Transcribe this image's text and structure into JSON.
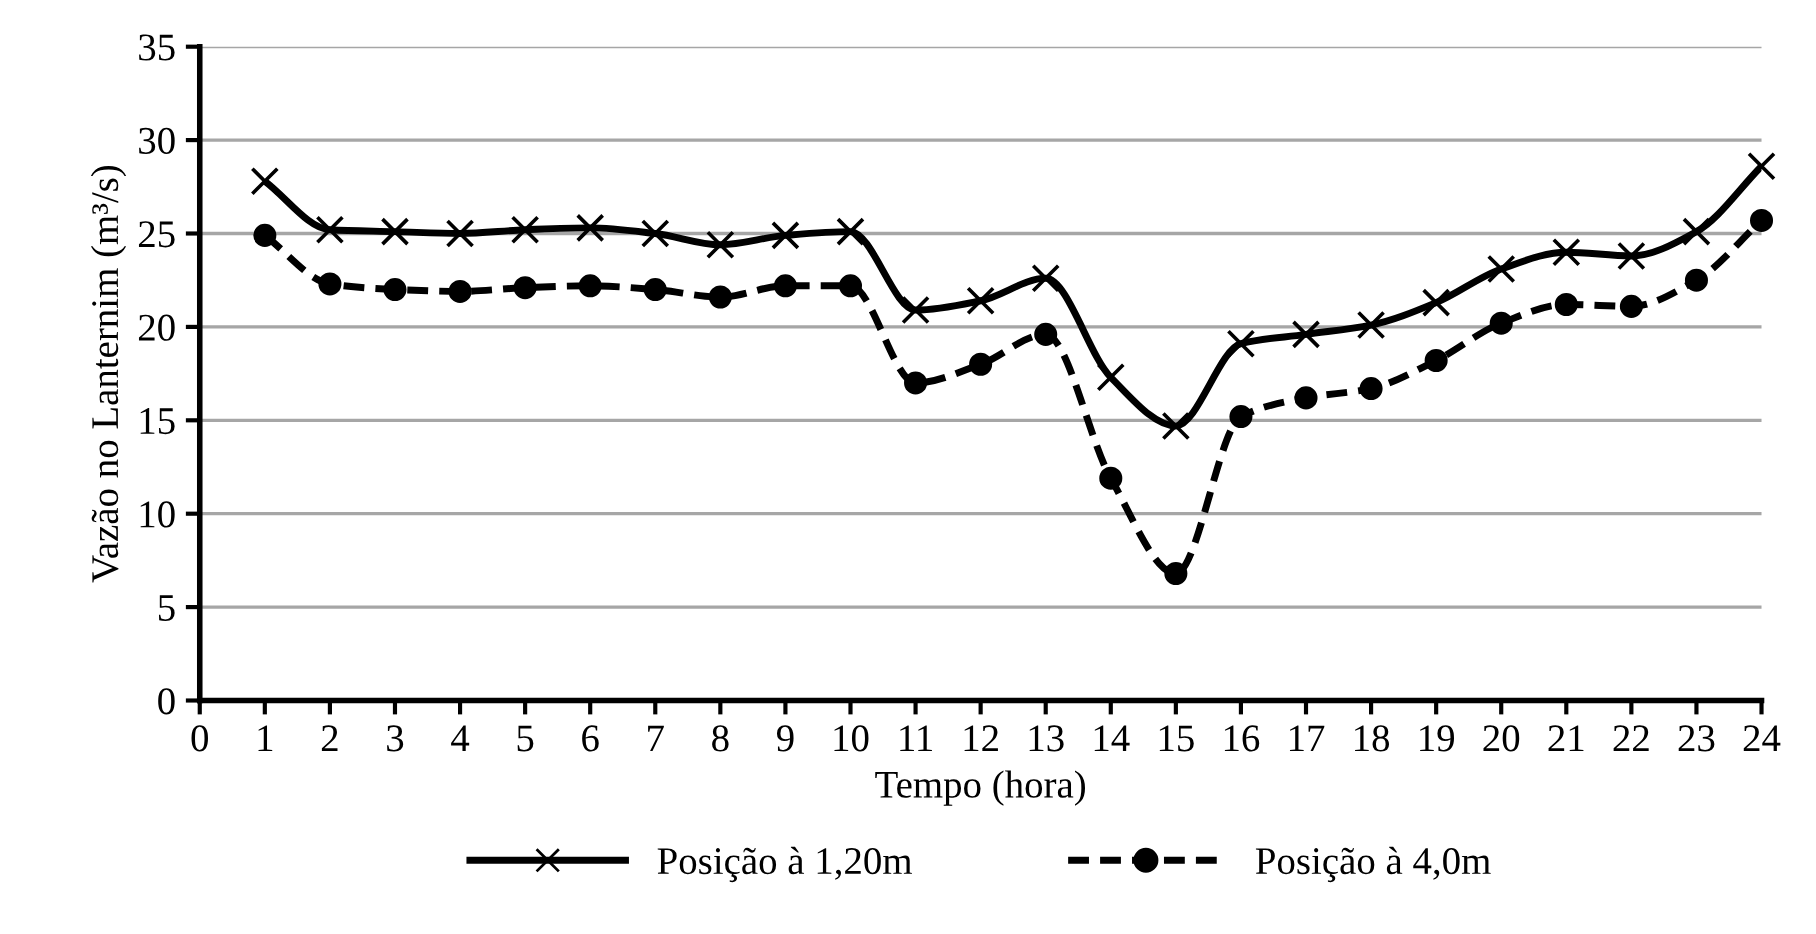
{
  "chart_data": {
    "type": "line",
    "xlabel": "Tempo (hora)",
    "ylabel": "Vazão no Lanternim (m³/s)",
    "x": [
      1,
      2,
      3,
      4,
      5,
      6,
      7,
      8,
      9,
      10,
      11,
      12,
      13,
      14,
      15,
      16,
      17,
      18,
      19,
      20,
      21,
      22,
      23,
      24
    ],
    "series": [
      {
        "name": "Posição à 1,20m",
        "color": "#000000",
        "marker": "cross",
        "line_style": "solid",
        "values": [
          27.8,
          25.2,
          25.1,
          25.0,
          25.2,
          25.3,
          25.0,
          24.4,
          24.9,
          25.1,
          20.9,
          21.4,
          22.6,
          17.3,
          14.7,
          19.1,
          19.6,
          20.1,
          21.3,
          23.1,
          24.0,
          23.8,
          25.1,
          28.6
        ]
      },
      {
        "name": "Posição à 4,0m",
        "color": "#000000",
        "marker": "circle",
        "line_style": "dashed",
        "values": [
          24.9,
          22.3,
          22.0,
          21.9,
          22.1,
          22.2,
          22.0,
          21.6,
          22.2,
          22.2,
          17.0,
          18.0,
          19.6,
          11.9,
          6.8,
          15.2,
          16.2,
          16.7,
          18.2,
          20.2,
          21.2,
          21.1,
          22.5,
          25.7
        ]
      }
    ],
    "xlim": [
      0,
      24
    ],
    "xticks": [
      0,
      1,
      2,
      3,
      4,
      5,
      6,
      7,
      8,
      9,
      10,
      11,
      12,
      13,
      14,
      15,
      16,
      17,
      18,
      19,
      20,
      21,
      22,
      23,
      24
    ],
    "ylim": [
      0,
      35
    ],
    "yticks": [
      0,
      5,
      10,
      15,
      20,
      25,
      30,
      35
    ],
    "grid": "y",
    "legend": "bottom"
  }
}
